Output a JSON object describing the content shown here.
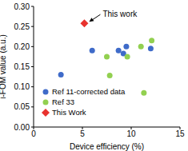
{
  "chart_data": {
    "type": "scatter",
    "xlabel": "Device efficiency (%)",
    "ylabel": "i-FOM value (a.u.)",
    "xlim": [
      0,
      15
    ],
    "xticks": [
      0,
      5,
      10,
      15
    ],
    "ylim": [
      0,
      0.3
    ],
    "yticks": [
      {
        "value": 0,
        "label": "0.00"
      },
      {
        "value": 0.05,
        "label": "0.05"
      },
      {
        "value": 0.1,
        "label": "0.10"
      },
      {
        "value": 0.15,
        "label": "0.15"
      },
      {
        "value": 0.2,
        "label": "0.20"
      },
      {
        "value": 0.25,
        "label": "0.25"
      },
      {
        "value": 0.3,
        "label": "0.30"
      }
    ],
    "grid": false,
    "legend": "lower left",
    "series": [
      {
        "name": "Ref 11-corrected data",
        "color": "#3f6bc9",
        "marker": "circle",
        "x": [
          2.8,
          6.0,
          8.7,
          9.2,
          9.5,
          12.0
        ],
        "values": [
          0.13,
          0.19,
          0.19,
          0.183,
          0.2,
          0.195
        ]
      },
      {
        "name": "Ref 33",
        "color": "#92d050",
        "marker": "circle",
        "x": [
          7.5,
          7.8,
          9.6,
          11.0,
          11.3,
          12.1
        ],
        "values": [
          0.175,
          0.128,
          0.175,
          0.2,
          0.085,
          0.215
        ]
      },
      {
        "name": "This Work",
        "color": "#e8322e",
        "marker": "diamond",
        "x": [
          5.2
        ],
        "values": [
          0.258
        ]
      }
    ],
    "annotations": [
      {
        "text": "This work",
        "series": "This Work"
      }
    ]
  }
}
